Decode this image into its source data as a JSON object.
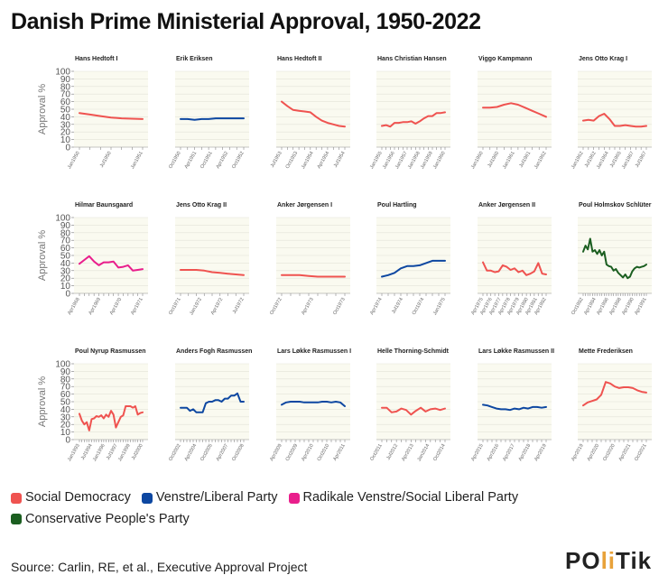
{
  "title": "Danish Prime Ministerial Approval, 1950-2022",
  "source": "Source: Carlin, RE, et al., Executive Approval Project",
  "logo": {
    "text_a": "PO",
    "text_accent": "li",
    "text_b": "Tik"
  },
  "colors": {
    "social_democracy": "#ef5350",
    "venstre": "#0d47a1",
    "radikale": "#e91e8c",
    "conservative": "#1b5e20",
    "panel_bg": "#fafaf0",
    "grid": "#e3e3d8"
  },
  "legend": [
    {
      "label": "Social Democracy",
      "color": "#ef5350"
    },
    {
      "label": "Venstre/Liberal Party",
      "color": "#0d47a1"
    },
    {
      "label": "Radikale Venstre/Social Liberal Party",
      "color": "#e91e8c"
    },
    {
      "label": "Conservative People's Party",
      "color": "#1b5e20"
    }
  ],
  "chart_data": {
    "type": "line",
    "title": "Danish Prime Ministerial Approval, 1950-2022",
    "ylabel": "Approval %",
    "ylim": [
      0,
      100
    ],
    "yticks": [
      0,
      10,
      20,
      30,
      40,
      50,
      60,
      70,
      80,
      90,
      100
    ],
    "grid": true,
    "legend_position": "bottom-left",
    "panels": [
      {
        "name": "Hans Hedtoft I",
        "party": "social_democracy",
        "xticks": [
          "Jan1950",
          "Jul1950",
          "Jan1951"
        ],
        "values": [
          45,
          43,
          41,
          39,
          38,
          37.5,
          37
        ]
      },
      {
        "name": "Erik Eriksen",
        "party": "venstre",
        "xticks": [
          "Oct1950",
          "Apr1951",
          "Oct1951",
          "Apr1952",
          "Oct1952"
        ],
        "values": [
          37,
          37,
          36,
          37,
          37,
          38,
          38,
          38,
          38,
          38
        ]
      },
      {
        "name": "Hans Hedtoft II",
        "party": "social_democracy",
        "xticks": [
          "Jul1953",
          "Oct1953",
          "Jan1954",
          "Apr1954",
          "Jul1954"
        ],
        "values": [
          60,
          54,
          49,
          48,
          47,
          46,
          40,
          35,
          32,
          30,
          28,
          27
        ]
      },
      {
        "name": "Hans Christian Hansen",
        "party": "social_democracy",
        "xticks": [
          "Jan1955",
          "Jan1956",
          "Jan1957",
          "Jan1958",
          "Jan1959",
          "Jan1960"
        ],
        "values": [
          28,
          29,
          27,
          32,
          32,
          33,
          33,
          34,
          31,
          34,
          38,
          41,
          41,
          45,
          45,
          46
        ]
      },
      {
        "name": "Viggo Kampmann",
        "party": "social_democracy",
        "xticks": [
          "Jan1960",
          "Jul1960",
          "Jan1961",
          "Jul1961",
          "Jan1962"
        ],
        "values": [
          52,
          52,
          53,
          56,
          58,
          56,
          52,
          48,
          44,
          40
        ]
      },
      {
        "name": "Jens Otto Krag I",
        "party": "social_democracy",
        "xticks": [
          "Jan1962",
          "Jul1962",
          "Jan1964",
          "Jul1965",
          "Jan1967",
          "Jul1967"
        ],
        "values": [
          35,
          36,
          35,
          41,
          44,
          37,
          28,
          28,
          29,
          28,
          27,
          27,
          28
        ]
      },
      {
        "name": "Hilmar Baunsgaard",
        "party": "radikale",
        "xticks": [
          "Apr1968",
          "Apr1969",
          "Apr1970",
          "Apr1971"
        ],
        "values": [
          39,
          44,
          49,
          42,
          37,
          41,
          41,
          42,
          34,
          35,
          37,
          30,
          31,
          32
        ]
      },
      {
        "name": "Jens Otto Krag II",
        "party": "social_democracy",
        "xticks": [
          "Oct1971",
          "Jan1972",
          "Apr1972",
          "Jul1972"
        ],
        "values": [
          31,
          31,
          31,
          30,
          28,
          27,
          26,
          25,
          24
        ]
      },
      {
        "name": "Anker Jørgensen I",
        "party": "social_democracy",
        "xticks": [
          "Oct1972",
          "Apr1973",
          "Oct1973"
        ],
        "values": [
          24,
          24,
          24,
          23,
          22,
          22,
          22,
          22
        ]
      },
      {
        "name": "Poul Hartling",
        "party": "venstre",
        "xticks": [
          "Apr1974",
          "Jul1974",
          "Oct1974",
          "Jan1975"
        ],
        "values": [
          22,
          24,
          27,
          33,
          36,
          36,
          37,
          40,
          43,
          43,
          43
        ]
      },
      {
        "name": "Anker Jørgensen II",
        "party": "social_democracy",
        "xticks": [
          "Apr1975",
          "Apr1976",
          "Apr1977",
          "Apr1978",
          "Apr1979",
          "Apr1980",
          "Apr1981",
          "Apr1982"
        ],
        "values": [
          41,
          30,
          30,
          28,
          29,
          37,
          35,
          31,
          33,
          28,
          30,
          24,
          26,
          29,
          40,
          26,
          25
        ]
      },
      {
        "name": "Poul Holmskov Schlüter",
        "party": "conservative",
        "xticks": [
          "Oct1982",
          "Apr1984",
          "Apr1986",
          "Apr1988",
          "Apr1990",
          "Apr1991"
        ],
        "values": [
          55,
          63,
          58,
          72,
          55,
          57,
          52,
          57,
          50,
          55,
          38,
          36,
          35,
          30,
          32,
          27,
          24,
          21,
          25,
          20,
          22,
          29,
          33,
          35,
          34,
          35,
          36,
          38
        ]
      },
      {
        "name": "Poul Nyrup Rasmussen",
        "party": "social_democracy",
        "xticks": [
          "Jan1993",
          "Jul1994",
          "Jan1996",
          "Jul1997",
          "Jan1999",
          "Jul2000"
        ],
        "values": [
          34,
          25,
          20,
          23,
          12,
          27,
          28,
          31,
          30,
          32,
          28,
          33,
          30,
          38,
          33,
          16,
          23,
          30,
          32,
          44,
          44,
          44,
          42,
          44,
          33,
          35,
          36
        ]
      },
      {
        "name": "Anders Fogh Rasmussen",
        "party": "venstre",
        "xticks": [
          "Oct2002",
          "Apr2004",
          "Oct2005",
          "Apr2007",
          "Oct2008"
        ],
        "values": [
          42,
          42,
          42,
          38,
          40,
          36,
          36,
          36,
          48,
          50,
          50,
          52,
          52,
          50,
          54,
          54,
          58,
          58,
          61,
          50,
          50
        ]
      },
      {
        "name": "Lars Løkke Rasmussen I",
        "party": "venstre",
        "xticks": [
          "Apr2009",
          "Oct2009",
          "Apr2010",
          "Oct2010",
          "Apr2011"
        ],
        "values": [
          46,
          49,
          50,
          50,
          50,
          49,
          49,
          49,
          49,
          50,
          50,
          49,
          50,
          49,
          44
        ]
      },
      {
        "name": "Helle Thorning-Schmidt",
        "party": "social_democracy",
        "xticks": [
          "Oct2011",
          "Jul2012",
          "Apr2013",
          "Jan2014",
          "Oct2014"
        ],
        "values": [
          42,
          42,
          36,
          37,
          41,
          39,
          33,
          38,
          42,
          37,
          40,
          41,
          39,
          41
        ]
      },
      {
        "name": "Lars Løkke Rasmussen II",
        "party": "venstre",
        "xticks": [
          "Apr2015",
          "Apr2016",
          "Apr2017",
          "Apr2018",
          "Apr2019"
        ],
        "values": [
          46,
          45,
          43,
          41,
          40,
          40,
          39,
          41,
          40,
          42,
          41,
          43,
          43,
          42,
          43
        ]
      },
      {
        "name": "Mette Frederiksen",
        "party": "social_democracy",
        "xticks": [
          "Apr2019",
          "Apr2020",
          "Oct2020",
          "Apr2021",
          "Oct2021"
        ],
        "values": [
          45,
          49,
          51,
          53,
          59,
          76,
          74,
          70,
          68,
          69,
          69,
          68,
          65,
          63,
          62
        ]
      }
    ]
  }
}
